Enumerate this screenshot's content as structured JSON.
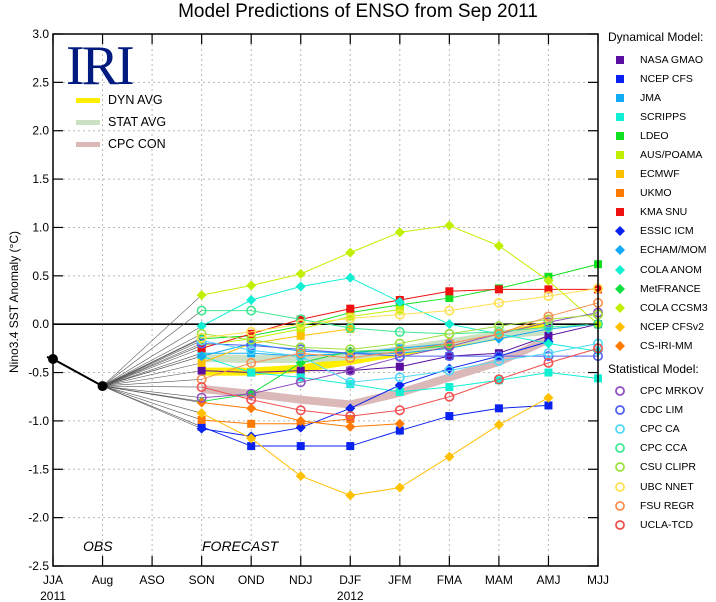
{
  "chart_data": {
    "type": "line",
    "title": "Model Predictions of ENSO from Sep 2011",
    "xlabel": "",
    "ylabel": "Nino3.4 SST Anomaly (°C)",
    "ylim": [
      -2.5,
      3.0
    ],
    "yticks": [
      "3.0",
      "2.5",
      "2.0",
      "1.5",
      "1.0",
      "0.5",
      "0.0",
      "-0.5",
      "-1.0",
      "-1.5",
      "-2.0",
      "-2.5"
    ],
    "categories": [
      "JJA",
      "Aug",
      "ASO",
      "SON",
      "OND",
      "NDJ",
      "DJF",
      "JFM",
      "FMA",
      "MAM",
      "AMJ",
      "MJJ"
    ],
    "year_labels": [
      {
        "label": "2011",
        "at": "JJA"
      },
      {
        "label": "2012",
        "at": "DJF"
      }
    ],
    "grid": true,
    "annotations": [
      "OBS",
      "FORECAST"
    ],
    "logo": "IRI",
    "observed": {
      "name": "OBS",
      "x": [
        "JJA",
        "Aug"
      ],
      "values": [
        -0.36,
        -0.64
      ]
    },
    "averages": [
      {
        "name": "DYN AVG",
        "color": "#ffee00",
        "values": [
          -0.49,
          -0.49,
          -0.46,
          -0.38,
          -0.29,
          -0.2,
          -0.12,
          -0.01
        ]
      },
      {
        "name": "STAT AVG",
        "color": "#cce0c4",
        "values": [
          -0.35,
          -0.36,
          -0.36,
          -0.33,
          -0.27,
          -0.19,
          -0.11,
          -0.07
        ]
      },
      {
        "name": "CPC CON",
        "color": "#dbb9b9",
        "values": [
          -0.67,
          -0.72,
          -0.78,
          -0.83,
          -0.71,
          -0.55,
          -0.39,
          -0.16
        ]
      }
    ],
    "forecast_x": [
      "SON",
      "OND",
      "NDJ",
      "DJF",
      "JFM",
      "FMA",
      "MAM",
      "AMJ"
    ],
    "legend_placement": "right",
    "dynamical_header": "Dynamical Model:",
    "statistical_header": "Statistical Model:",
    "series": [
      {
        "name": "NASA GMAO",
        "group": "dyn",
        "marker": "square",
        "color": "#5a0fa0",
        "values": [
          -0.48,
          -0.5,
          -0.48,
          -0.48,
          -0.44,
          -0.33,
          -0.3,
          -0.12,
          0.0
        ]
      },
      {
        "name": "NCEP CFS",
        "group": "dyn",
        "marker": "square",
        "color": "#0a22f0",
        "values": [
          -1.06,
          -1.26,
          -1.26,
          -1.26,
          -1.1,
          -0.95,
          -0.87,
          -0.84
        ]
      },
      {
        "name": "JMA",
        "group": "dyn",
        "marker": "square",
        "color": "#12aaf5",
        "values": [
          -0.3,
          -0.3,
          -0.33,
          -0.3,
          -0.25,
          -0.2
        ]
      },
      {
        "name": "SCRIPPS",
        "group": "dyn",
        "marker": "square",
        "color": "#12f0d4",
        "values": [
          -0.33,
          -0.5,
          -0.55,
          -0.62,
          -0.7,
          -0.65,
          -0.58,
          -0.5,
          -0.56
        ]
      },
      {
        "name": "LDEO",
        "group": "dyn",
        "marker": "square",
        "color": "#10e020",
        "values": [
          -0.15,
          -0.12,
          -0.02,
          0.12,
          0.2,
          0.27,
          0.37,
          0.49,
          0.62
        ]
      },
      {
        "name": "AUS/POAMA",
        "group": "dyn",
        "marker": "square",
        "color": "#c0f000",
        "values": [
          -0.22,
          -0.15,
          -0.05,
          0.08,
          0.15
        ]
      },
      {
        "name": "ECMWF",
        "group": "dyn",
        "marker": "square",
        "color": "#ffc000",
        "values": [
          -0.4,
          -0.2,
          -0.12,
          -0.05
        ]
      },
      {
        "name": "UKMO",
        "group": "dyn",
        "marker": "square",
        "color": "#ff7a00",
        "values": [
          -0.99,
          -1.03,
          -1.03,
          -0.98
        ]
      },
      {
        "name": "KMA SNU",
        "group": "dyn",
        "marker": "square",
        "color": "#f01010",
        "values": [
          -0.25,
          -0.1,
          0.05,
          0.16,
          0.25,
          0.34,
          0.36,
          0.36,
          0.36
        ]
      },
      {
        "name": "ESSIC ICM",
        "group": "dyn",
        "marker": "diamond",
        "color": "#0a22f0",
        "values": [
          -1.08,
          -1.16,
          -1.07,
          -0.87,
          -0.63,
          -0.46,
          -0.33,
          -0.18
        ]
      },
      {
        "name": "ECHAM/MOM",
        "group": "dyn",
        "marker": "diamond",
        "color": "#12aaf5",
        "values": [
          -0.33,
          -0.2,
          -0.28,
          -0.3,
          -0.3,
          -0.25,
          -0.15,
          -0.05,
          0.0
        ]
      },
      {
        "name": "COLA ANOM",
        "group": "dyn",
        "marker": "diamond",
        "color": "#12f0d4",
        "values": [
          -0.02,
          0.25,
          0.39,
          0.48,
          0.23,
          0.0,
          -0.1,
          -0.2,
          -0.28
        ]
      },
      {
        "name": "MetFRANCE",
        "group": "dyn",
        "marker": "diamond",
        "color": "#10e040",
        "values": [
          -0.8,
          -0.72,
          -0.4,
          -0.28,
          -0.27,
          -0.22
        ]
      },
      {
        "name": "COLA CCSM3",
        "group": "dyn",
        "marker": "diamond",
        "color": "#c0f000",
        "values": [
          0.3,
          0.4,
          0.52,
          0.74,
          0.95,
          1.02,
          0.81,
          0.45,
          0.0
        ]
      },
      {
        "name": "NCEP CFSv2",
        "group": "dyn",
        "marker": "diamond",
        "color": "#ffc000",
        "values": [
          -0.92,
          -1.18,
          -1.57,
          -1.77,
          -1.69,
          -1.37,
          -1.04,
          -0.76
        ]
      },
      {
        "name": "CS-IRI-MM",
        "group": "dyn",
        "marker": "diamond",
        "color": "#ff7a00",
        "values": [
          -0.81,
          -0.87,
          -1.0,
          -1.06,
          -1.03
        ]
      },
      {
        "name": "CPC MRKOV",
        "group": "stat",
        "marker": "circle",
        "color": "#9050c0",
        "values": [
          -0.76,
          -0.72,
          -0.6,
          -0.48,
          -0.34,
          -0.23,
          -0.1,
          0.02,
          0.12
        ]
      },
      {
        "name": "CDC LIM",
        "group": "stat",
        "marker": "circle",
        "color": "#5060f0",
        "values": [
          -0.2,
          -0.22,
          -0.26,
          -0.3,
          -0.33,
          -0.33,
          -0.33,
          -0.33,
          -0.33
        ]
      },
      {
        "name": "CPC CA",
        "group": "stat",
        "marker": "circle",
        "color": "#50d8f8",
        "values": [
          -0.17,
          -0.27,
          -0.33,
          -0.6,
          -0.55,
          -0.48,
          -0.38,
          -0.3,
          -0.2
        ]
      },
      {
        "name": "CPC CCA",
        "group": "stat",
        "marker": "circle",
        "color": "#40e890",
        "values": [
          0.14,
          0.14,
          0.05,
          -0.04,
          -0.08,
          -0.1,
          -0.08,
          -0.03,
          0.0
        ]
      },
      {
        "name": "CSU CLIPR",
        "group": "stat",
        "marker": "circle",
        "color": "#a0e040",
        "values": [
          -0.1,
          -0.16,
          -0.24,
          -0.26,
          -0.2,
          -0.1,
          -0.02,
          0.05,
          0.1
        ]
      },
      {
        "name": "UBC NNET",
        "group": "stat",
        "marker": "circle",
        "color": "#ffe050",
        "values": [
          -0.14,
          -0.08,
          0.0,
          0.06,
          0.1,
          0.14,
          0.22,
          0.29,
          0.37
        ]
      },
      {
        "name": "FSU REGR",
        "group": "stat",
        "marker": "circle",
        "color": "#f89050",
        "values": [
          -0.57,
          -0.4,
          -0.3,
          -0.35,
          -0.28,
          -0.2,
          -0.1,
          0.08,
          0.22
        ]
      },
      {
        "name": "UCLA-TCD",
        "group": "stat",
        "marker": "circle",
        "color": "#f05050",
        "values": [
          -0.65,
          -0.78,
          -0.89,
          -0.95,
          -0.89,
          -0.75,
          -0.57,
          -0.4,
          -0.25
        ]
      }
    ]
  }
}
